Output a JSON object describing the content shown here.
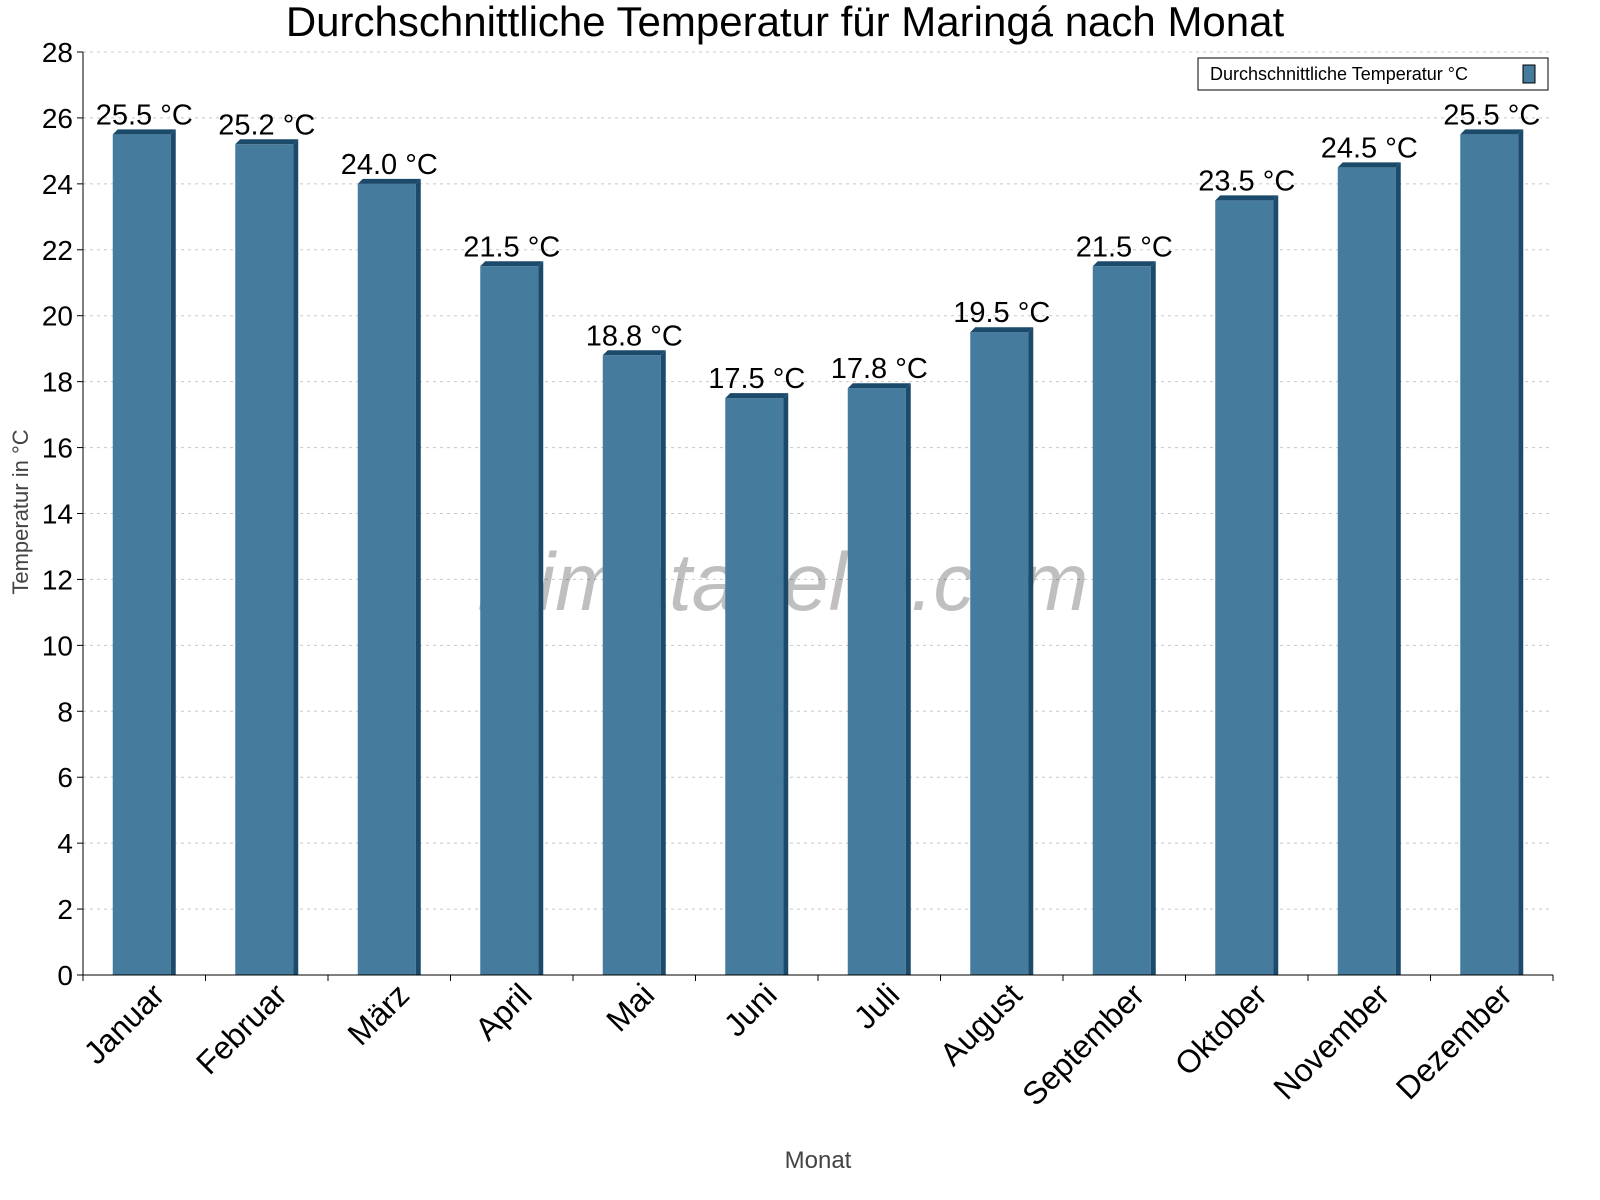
{
  "chart_data": {
    "type": "bar",
    "title": "Durchschnittliche Temperatur für Maringá nach Monat",
    "xlabel": "Monat",
    "ylabel": "Temperatur in °C",
    "categories": [
      "Januar",
      "Februar",
      "März",
      "April",
      "Mai",
      "Juni",
      "Juli",
      "August",
      "September",
      "Oktober",
      "November",
      "Dezember"
    ],
    "series": [
      {
        "name": "Durchschnittliche Temperatur °C",
        "values": [
          25.5,
          25.2,
          24.0,
          21.5,
          18.8,
          17.5,
          17.8,
          19.5,
          21.5,
          23.5,
          24.5,
          25.5
        ],
        "color": "#457b9d",
        "side_color": "#1b4a6b"
      }
    ],
    "data_labels": [
      "25.5 °C",
      "25.2 °C",
      "24.0 °C",
      "21.5 °C",
      "18.8 °C",
      "17.5 °C",
      "17.8 °C",
      "19.5 °C",
      "21.5 °C",
      "23.5 °C",
      "24.5 °C",
      "25.5 °C"
    ],
    "ylim": [
      0,
      28
    ],
    "yticks": [
      0,
      2,
      4,
      6,
      8,
      10,
      12,
      14,
      16,
      18,
      20,
      22,
      24,
      26,
      28
    ],
    "grid": true,
    "legend_position": "top-right",
    "watermark": "klimatabelle.com"
  }
}
